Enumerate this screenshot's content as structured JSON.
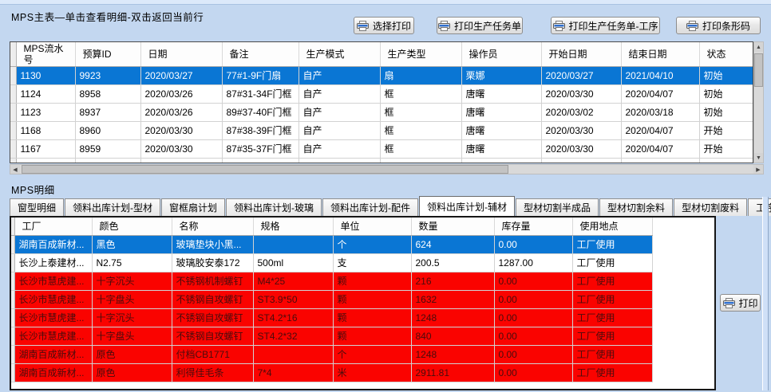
{
  "colors": {
    "selection_blue": "#0a76d4",
    "alert_red": "#fa0300",
    "alert_text": "#4a0c0c",
    "selected_date_text": "#0b2d71"
  },
  "top_panel": {
    "title": "MPS主表—单击查看明细-双击返回当前行",
    "buttons": [
      {
        "name": "select-print-button",
        "icon": "printer-icon",
        "label": "选择打印"
      },
      {
        "name": "print-production-order-button",
        "icon": "printer-icon",
        "label": "打印生产任务单"
      },
      {
        "name": "print-production-order-process-button",
        "icon": "printer-icon",
        "label": "打印生产任务单-工序"
      },
      {
        "name": "print-barcode-button",
        "icon": "printer-icon",
        "label": "打印条形码"
      }
    ],
    "grid": {
      "columns": [
        "MPS流水号",
        "预算ID",
        "日期",
        "备注",
        "生产模式",
        "生产类型",
        "操作员",
        "开始日期",
        "结束日期",
        "状态"
      ],
      "rows": [
        {
          "state": "selected",
          "cells": [
            "1130",
            "9923",
            "2020/03/27",
            "77#1-9F门扇",
            "自产",
            "扇",
            "栗娜",
            "2020/03/27",
            "2021/04/10",
            "初始"
          ]
        },
        {
          "state": "normal",
          "cells": [
            "1124",
            "8958",
            "2020/03/26",
            "87#31-34F门框",
            "自产",
            "框",
            "唐曙",
            "2020/03/30",
            "2020/04/07",
            "初始"
          ]
        },
        {
          "state": "normal",
          "cells": [
            "1123",
            "8937",
            "2020/03/26",
            "89#37-40F门框",
            "自产",
            "框",
            "唐曙",
            "2020/03/02",
            "2020/03/18",
            "初始"
          ]
        },
        {
          "state": "normal",
          "cells": [
            "1168",
            "8960",
            "2020/03/30",
            "87#38-39F门框",
            "自产",
            "框",
            "唐曙",
            "2020/03/30",
            "2020/04/07",
            "开始"
          ]
        },
        {
          "state": "normal",
          "cells": [
            "1167",
            "8959",
            "2020/03/30",
            "87#35-37F门框",
            "自产",
            "框",
            "唐曙",
            "2020/03/30",
            "2020/04/07",
            "开始"
          ]
        }
      ]
    }
  },
  "detail_panel": {
    "label": "MPS明细",
    "tabs": [
      {
        "label": "窗型明细",
        "active": false
      },
      {
        "label": "领料出库计划-型材",
        "active": false
      },
      {
        "label": "窗框扇计划",
        "active": false
      },
      {
        "label": "领料出库计划-玻璃",
        "active": false
      },
      {
        "label": "领料出库计划-配件",
        "active": false
      },
      {
        "label": "领料出库计划-辅材",
        "active": true
      },
      {
        "label": "型材切割半成品",
        "active": false
      },
      {
        "label": "型材切割余料",
        "active": false
      },
      {
        "label": "型材切割废料",
        "active": false
      },
      {
        "label": "工序",
        "active": false
      }
    ],
    "print_button": {
      "name": "print-button",
      "icon": "printer-icon",
      "label": "打印"
    },
    "grid": {
      "columns": [
        "工厂",
        "颜色",
        "名称",
        "规格",
        "单位",
        "数量",
        "库存量",
        "使用地点"
      ],
      "rows": [
        {
          "state": "selected",
          "cells": [
            "湖南百成新材...",
            "黑色",
            "玻璃垫块小黑...",
            "",
            "个",
            "624",
            "0.00",
            "工厂使用"
          ]
        },
        {
          "state": "normal",
          "cells": [
            "长沙上泰建材...",
            "N2.75",
            "玻璃胶安泰172",
            "500ml",
            "支",
            "200.5",
            "1287.00",
            "工厂使用"
          ]
        },
        {
          "state": "alert",
          "cells": [
            "长沙市慧虎建...",
            "十字沉头",
            "不锈钢机制螺钉",
            "M4*25",
            "颗",
            "216",
            "0.00",
            "工厂使用"
          ]
        },
        {
          "state": "alert",
          "cells": [
            "长沙市慧虎建...",
            "十字盘头",
            "不锈钢自攻螺钉",
            "ST3.9*50",
            "颗",
            "1632",
            "0.00",
            "工厂使用"
          ]
        },
        {
          "state": "alert",
          "cells": [
            "长沙市慧虎建...",
            "十字沉头",
            "不锈钢自攻螺钉",
            "ST4.2*16",
            "颗",
            "1248",
            "0.00",
            "工厂使用"
          ]
        },
        {
          "state": "alert",
          "cells": [
            "长沙市慧虎建...",
            "十字盘头",
            "不锈钢自攻螺钉",
            "ST4.2*32",
            "颗",
            "840",
            "0.00",
            "工厂使用"
          ]
        },
        {
          "state": "alert",
          "cells": [
            "湖南百成新材...",
            "原色",
            "付档CB1771",
            "",
            "个",
            "1248",
            "0.00",
            "工厂使用"
          ]
        },
        {
          "state": "alert",
          "cells": [
            "湖南百成新材...",
            "原色",
            "利得佳毛条",
            "7*4",
            "米",
            "2911.81",
            "0.00",
            "工厂使用"
          ]
        }
      ]
    }
  }
}
